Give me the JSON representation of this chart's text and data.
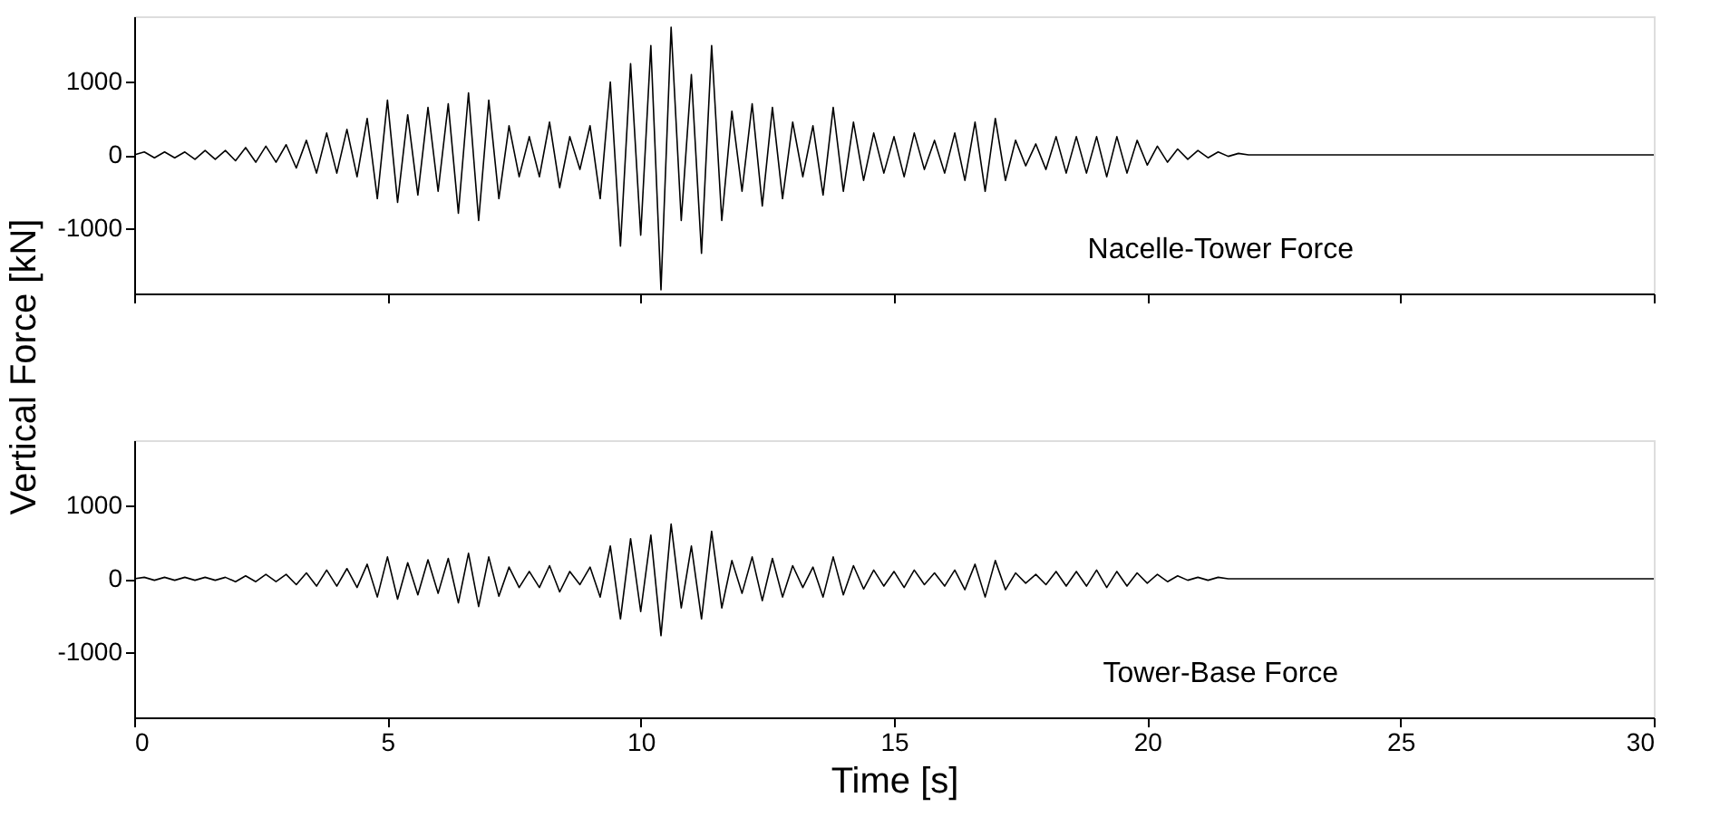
{
  "chart_data": [
    {
      "type": "line",
      "ylabel": "Vertical Force [kN]",
      "annotations": [
        "Nacelle-Tower Force"
      ],
      "tick_labels": "y",
      "grid": false,
      "x": [
        0,
        0.2,
        0.4,
        0.6,
        0.8,
        1.0,
        1.2,
        1.4,
        1.6,
        1.8,
        2.0,
        2.2,
        2.4,
        2.6,
        2.8,
        3.0,
        3.2,
        3.4,
        3.6,
        3.8,
        4.0,
        4.2,
        4.4,
        4.6,
        4.8,
        5.0,
        5.2,
        5.4,
        5.6,
        5.8,
        6.0,
        6.2,
        6.4,
        6.6,
        6.8,
        7.0,
        7.2,
        7.4,
        7.6,
        7.8,
        8.0,
        8.2,
        8.4,
        8.6,
        8.8,
        9.0,
        9.2,
        9.4,
        9.6,
        9.8,
        10.0,
        10.2,
        10.4,
        10.6,
        10.8,
        11.0,
        11.2,
        11.4,
        11.6,
        11.8,
        12.0,
        12.2,
        12.4,
        12.6,
        12.8,
        13.0,
        13.2,
        13.4,
        13.6,
        13.8,
        14.0,
        14.2,
        14.4,
        14.6,
        14.8,
        15.0,
        15.2,
        15.4,
        15.6,
        15.8,
        16.0,
        16.2,
        16.4,
        16.6,
        16.8,
        17.0,
        17.2,
        17.4,
        17.6,
        17.8,
        18.0,
        18.2,
        18.4,
        18.6,
        18.8,
        19.0,
        19.2,
        19.4,
        19.6,
        19.8,
        20.0,
        20.2,
        20.4,
        20.6,
        20.8,
        21.0,
        21.2,
        21.4,
        21.6,
        21.8,
        22.0,
        30
      ],
      "series": [
        {
          "color": "#000000",
          "values": [
            0,
            40,
            -40,
            40,
            -40,
            40,
            -60,
            60,
            -60,
            60,
            -80,
            100,
            -100,
            120,
            -100,
            140,
            -180,
            200,
            -250,
            300,
            -250,
            350,
            -300,
            500,
            -600,
            750,
            -650,
            550,
            -550,
            650,
            -500,
            700,
            -800,
            850,
            -900,
            750,
            -600,
            400,
            -300,
            250,
            -300,
            450,
            -450,
            250,
            -200,
            400,
            -600,
            1000,
            -1250,
            1250,
            -1100,
            1500,
            -1850,
            1750,
            -900,
            1100,
            -1350,
            1500,
            -900,
            600,
            -500,
            700,
            -700,
            650,
            -600,
            450,
            -300,
            400,
            -550,
            650,
            -500,
            450,
            -350,
            300,
            -250,
            250,
            -300,
            300,
            -200,
            200,
            -250,
            300,
            -350,
            450,
            -500,
            500,
            -350,
            200,
            -150,
            150,
            -200,
            250,
            -250,
            250,
            -250,
            250,
            -300,
            250,
            -250,
            200,
            -140,
            120,
            -100,
            80,
            -60,
            60,
            -40,
            40,
            -20,
            20,
            0,
            0
          ]
        }
      ],
      "xlim": [
        0,
        30
      ],
      "xticks": [
        0,
        5,
        10,
        15,
        20,
        25,
        30
      ],
      "ylim": [
        -1900,
        1900
      ],
      "yticks": [
        -1000,
        0,
        1000
      ]
    },
    {
      "type": "line",
      "xlabel": "Time [s]",
      "annotations": [
        "Tower-Base Force"
      ],
      "grid": false,
      "x": [
        0,
        0.2,
        0.4,
        0.6,
        0.8,
        1.0,
        1.2,
        1.4,
        1.6,
        1.8,
        2.0,
        2.2,
        2.4,
        2.6,
        2.8,
        3.0,
        3.2,
        3.4,
        3.6,
        3.8,
        4.0,
        4.2,
        4.4,
        4.6,
        4.8,
        5.0,
        5.2,
        5.4,
        5.6,
        5.8,
        6.0,
        6.2,
        6.4,
        6.6,
        6.8,
        7.0,
        7.2,
        7.4,
        7.6,
        7.8,
        8.0,
        8.2,
        8.4,
        8.6,
        8.8,
        9.0,
        9.2,
        9.4,
        9.6,
        9.8,
        10.0,
        10.2,
        10.4,
        10.6,
        10.8,
        11.0,
        11.2,
        11.4,
        11.6,
        11.8,
        12.0,
        12.2,
        12.4,
        12.6,
        12.8,
        13.0,
        13.2,
        13.4,
        13.6,
        13.8,
        14.0,
        14.2,
        14.4,
        14.6,
        14.8,
        15.0,
        15.2,
        15.4,
        15.6,
        15.8,
        16.0,
        16.2,
        16.4,
        16.6,
        16.8,
        17.0,
        17.2,
        17.4,
        17.6,
        17.8,
        18.0,
        18.2,
        18.4,
        18.6,
        18.8,
        19.0,
        19.2,
        19.4,
        19.6,
        19.8,
        20.0,
        20.2,
        20.4,
        20.6,
        20.8,
        21.0,
        21.2,
        21.4,
        21.6,
        21.8,
        22.0,
        30
      ],
      "series": [
        {
          "color": "#000000",
          "values": [
            0,
            20,
            -20,
            20,
            -20,
            20,
            -20,
            20,
            -20,
            20,
            -40,
            40,
            -40,
            60,
            -40,
            60,
            -80,
            80,
            -100,
            120,
            -100,
            140,
            -120,
            200,
            -250,
            300,
            -280,
            220,
            -220,
            260,
            -200,
            280,
            -330,
            350,
            -380,
            300,
            -240,
            160,
            -120,
            100,
            -120,
            180,
            -180,
            100,
            -80,
            160,
            -250,
            450,
            -550,
            550,
            -450,
            600,
            -780,
            750,
            -400,
            450,
            -550,
            650,
            -400,
            250,
            -200,
            300,
            -300,
            280,
            -250,
            180,
            -120,
            160,
            -250,
            300,
            -220,
            180,
            -140,
            120,
            -100,
            100,
            -120,
            120,
            -80,
            80,
            -100,
            120,
            -150,
            200,
            -250,
            250,
            -150,
            80,
            -60,
            60,
            -80,
            100,
            -100,
            100,
            -100,
            120,
            -120,
            100,
            -100,
            80,
            -60,
            60,
            -40,
            40,
            -20,
            20,
            -20,
            20,
            0,
            0,
            0,
            0
          ]
        }
      ],
      "xlim": [
        0,
        30
      ],
      "xticks": [
        0,
        5,
        10,
        15,
        20,
        25,
        30
      ],
      "ylim": [
        -1900,
        1900
      ],
      "yticks": [
        -1000,
        0,
        1000
      ]
    }
  ]
}
